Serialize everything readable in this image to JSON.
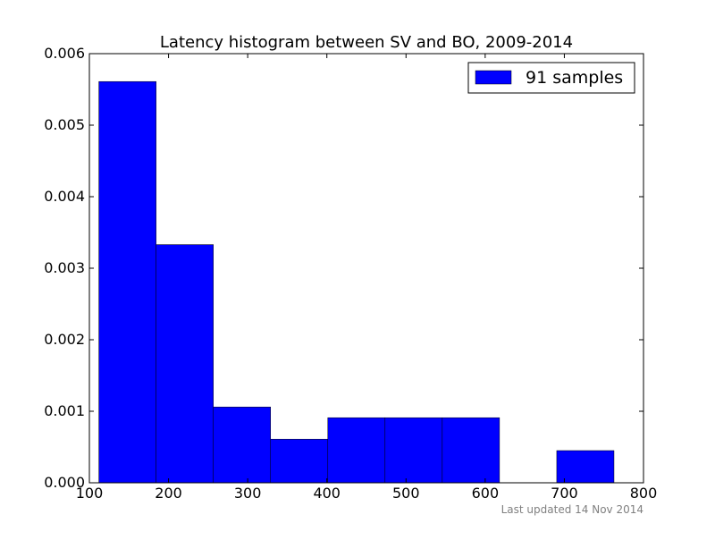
{
  "chart_data": {
    "type": "bar",
    "title": "Latency histogram between SV and BO, 2009-2014",
    "xlabel": "",
    "ylabel": "",
    "xlim": [
      100,
      800
    ],
    "ylim": [
      0,
      0.006
    ],
    "x_ticks": [
      100,
      200,
      300,
      400,
      500,
      600,
      700,
      800
    ],
    "x_tick_labels": [
      "100",
      "200",
      "300",
      "400",
      "500",
      "600",
      "700",
      "800"
    ],
    "y_ticks": [
      0,
      0.001,
      0.002,
      0.003,
      0.004,
      0.005,
      0.006
    ],
    "y_tick_labels": [
      "0.000",
      "0.001",
      "0.002",
      "0.003",
      "0.004",
      "0.005",
      "0.006"
    ],
    "bin_edges": [
      112,
      184.3,
      256.6,
      328.9,
      401.2,
      473.5,
      545.8,
      618.1,
      690.4,
      762.7
    ],
    "values": [
      0.00561,
      0.00333,
      0.00106,
      0.00061,
      0.00091,
      0.00091,
      0.00091,
      0,
      0.00045
    ],
    "series": [
      {
        "name": "91 samples",
        "values": [
          0.00561,
          0.00333,
          0.00106,
          0.00061,
          0.00091,
          0.00091,
          0.00091,
          0,
          0.00045
        ]
      }
    ],
    "legend": {
      "position": "top-right",
      "label": "91 samples"
    },
    "grid": false,
    "bar_color": "#0000ff",
    "footnote": "Last updated 14 Nov 2014"
  }
}
